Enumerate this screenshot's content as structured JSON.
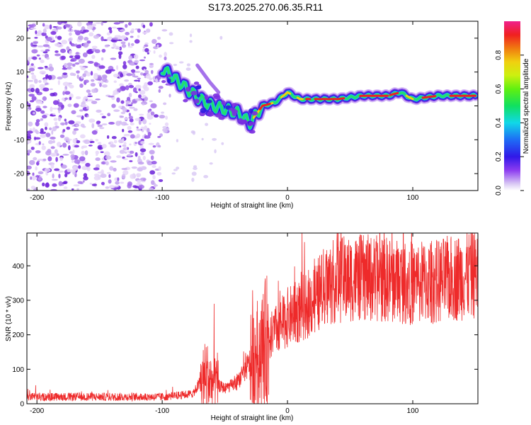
{
  "title": "S173.2025.270.06.35.R11",
  "colors": {
    "snr_line": "#ee2a2a",
    "axis": "#000000"
  },
  "chart_data": [
    {
      "type": "heatmap",
      "name": "spectrogram",
      "xlabel": "Height of straight line (km)",
      "ylabel": "Frequency (Hz)",
      "xlim": [
        -208,
        152
      ],
      "ylim": [
        -25,
        25
      ],
      "xticks": [
        -200,
        -100,
        0,
        100
      ],
      "yticks": [
        -20,
        -10,
        0,
        10,
        20
      ],
      "colorbar": {
        "label": "Normalized spectral amplitude",
        "range": [
          0,
          1
        ],
        "ticks": [
          0.0,
          0.2,
          0.4,
          0.6,
          0.8
        ]
      },
      "ridge": {
        "x": [
          -100,
          -90,
          -80,
          -70,
          -60,
          -50,
          -40,
          -30,
          -20,
          -10,
          0,
          10,
          20,
          40,
          60,
          80,
          90,
          100,
          120,
          150
        ],
        "y": [
          11,
          8,
          5,
          2,
          0,
          -1,
          -2,
          -5,
          0,
          1,
          4,
          2,
          2,
          2,
          3,
          3,
          4,
          2,
          3,
          3
        ]
      }
    },
    {
      "type": "line",
      "name": "snr",
      "xlabel": "Height of straight line (km)",
      "ylabel": "SNR (10 * v/v)",
      "xlim": [
        -208,
        152
      ],
      "ylim": [
        0,
        495
      ],
      "xticks": [
        -200,
        -100,
        0,
        100
      ],
      "yticks": [
        0,
        100,
        200,
        300,
        400
      ],
      "envelope": {
        "x": [
          -208,
          -100,
          -85,
          -75,
          -70,
          -65,
          -60,
          -50,
          -40,
          -35,
          -30,
          -25,
          -20,
          -15,
          -10,
          0,
          10,
          20,
          30,
          40,
          60,
          80,
          100,
          120,
          140,
          152
        ],
        "y": [
          20,
          20,
          25,
          30,
          60,
          80,
          60,
          45,
          60,
          90,
          120,
          140,
          160,
          190,
          210,
          250,
          270,
          300,
          340,
          360,
          365,
          360,
          350,
          355,
          370,
          380
        ]
      }
    }
  ]
}
